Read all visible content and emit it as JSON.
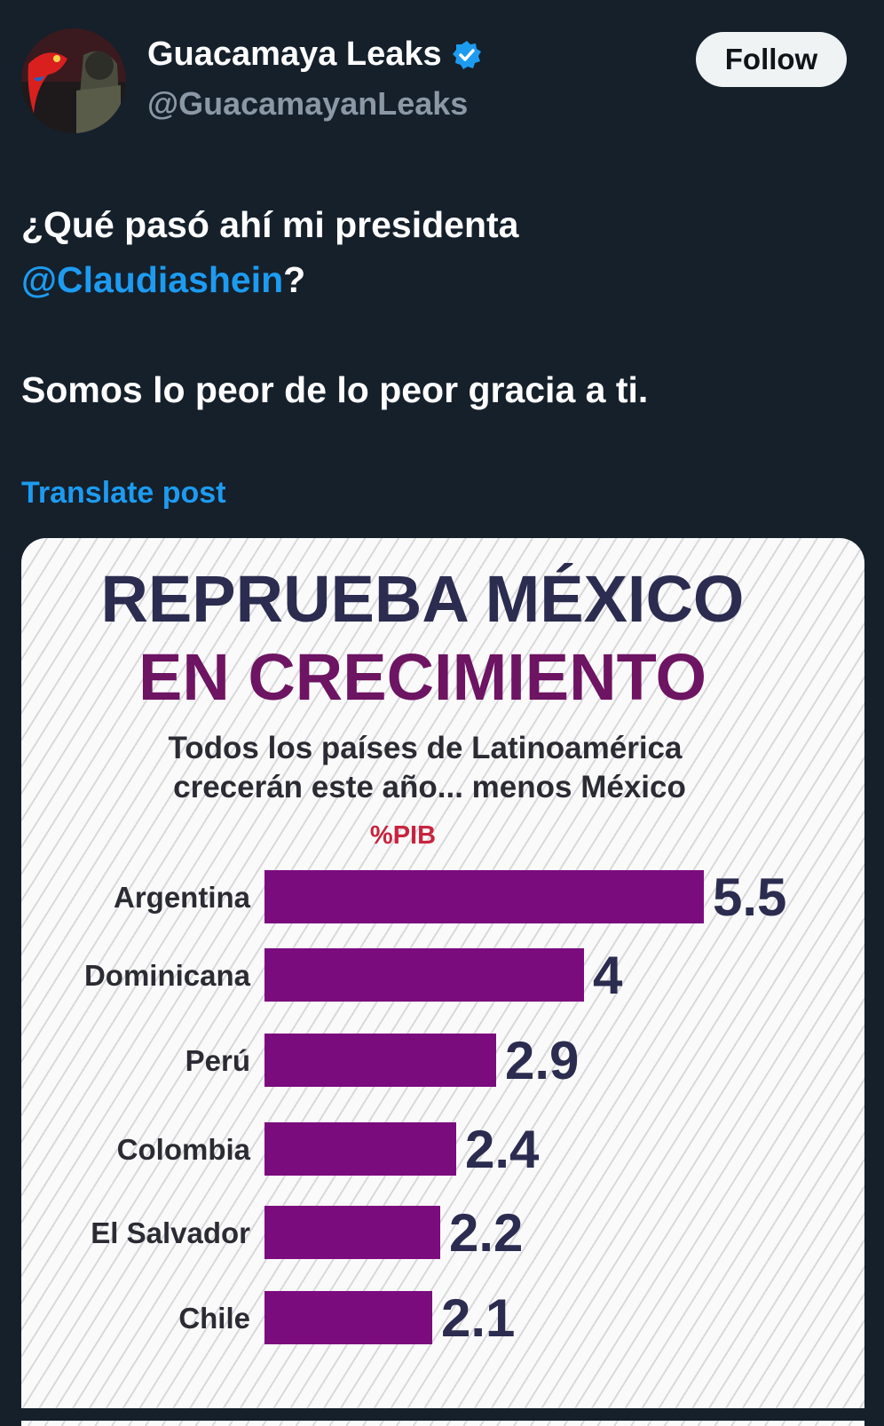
{
  "account": {
    "display_name": "Guacamaya Leaks",
    "handle": "@GuacamayanLeaks",
    "verified_icon": "verified-badge-icon",
    "follow_label": "Follow"
  },
  "tweet": {
    "line1": "¿Qué pasó ahí mi presidenta",
    "mention": "@Claudiashein",
    "after_mention": "?",
    "line3": "Somos lo peor de lo peor gracia a ti.",
    "translate_label": "Translate post"
  },
  "colors": {
    "background": "#15202b",
    "accent_blue": "#1d9bf0",
    "bar_purple": "#7b0c7e",
    "title_navy": "#2b2c4f",
    "title_purple": "#6d1462"
  },
  "chart_data": {
    "type": "bar",
    "orientation": "horizontal",
    "title_line1": "REPRUEBA MÉXICO",
    "title_line2": "EN CRECIMIENTO",
    "subtitle_line1": "Todos los países de Latinoamérica",
    "subtitle_line2": "crecerán este año... menos México",
    "unit_label": "%PIB",
    "categories": [
      "Argentina",
      "Dominicana",
      "Perú",
      "Colombia",
      "El Salvador",
      "Chile"
    ],
    "values": [
      5.5,
      4,
      2.9,
      2.4,
      2.2,
      2.1
    ],
    "value_labels": [
      "5.5",
      "4",
      "2.9",
      "2.4",
      "2.2",
      "2.1"
    ]
  }
}
